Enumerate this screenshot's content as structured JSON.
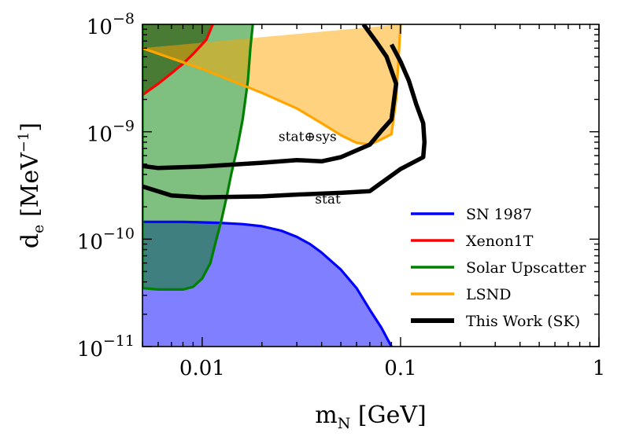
{
  "chart_data": {
    "type": "area",
    "x_scale": "log",
    "y_scale": "log",
    "xlim": [
      0.005,
      1
    ],
    "ylim": [
      1e-11,
      1e-08
    ],
    "xlabel_main": "m",
    "xlabel_sub": "N",
    "xlabel_unit": " [GeV]",
    "ylabel_main": "d",
    "ylabel_sub": "e",
    "ylabel_unit": " [MeV",
    "ylabel_exp": "−1",
    "ylabel_close": "]",
    "x_ticks": [
      {
        "value": 0.01,
        "label": "0.01"
      },
      {
        "value": 0.1,
        "label": "0.1"
      },
      {
        "value": 1,
        "label": "1"
      }
    ],
    "y_ticks": [
      {
        "value": 1e-08,
        "base": "10",
        "exp": "−8"
      },
      {
        "value": 1e-09,
        "base": "10",
        "exp": "−9"
      },
      {
        "value": 1e-10,
        "base": "10",
        "exp": "−10"
      },
      {
        "value": 1e-11,
        "base": "10",
        "exp": "−11"
      }
    ],
    "legend_position": "lower-right",
    "series": [
      {
        "name": "SN 1987",
        "color": "#0000ff",
        "fill": "#7f7fff",
        "fill_opacity": 1,
        "kind": "excluded-below",
        "points": [
          [
            0.005,
            1.45e-10
          ],
          [
            0.008,
            1.45e-10
          ],
          [
            0.012,
            1.42e-10
          ],
          [
            0.016,
            1.38e-10
          ],
          [
            0.02,
            1.32e-10
          ],
          [
            0.025,
            1.2e-10
          ],
          [
            0.03,
            1.05e-10
          ],
          [
            0.035,
            9e-11
          ],
          [
            0.04,
            7.5e-11
          ],
          [
            0.05,
            5.2e-11
          ],
          [
            0.06,
            3.5e-11
          ],
          [
            0.07,
            2.2e-11
          ],
          [
            0.08,
            1.5e-11
          ],
          [
            0.09,
            1e-11
          ]
        ]
      },
      {
        "name": "Xenon1T",
        "color": "#ff0000",
        "fill": "#6e4a3a",
        "fill_opacity": 0.75,
        "kind": "excluded-above",
        "points": [
          [
            0.005,
            2.2e-09
          ],
          [
            0.006,
            2.8e-09
          ],
          [
            0.007,
            3.5e-09
          ],
          [
            0.008,
            4.3e-09
          ],
          [
            0.009,
            5.3e-09
          ],
          [
            0.0105,
            7.2e-09
          ],
          [
            0.0113,
            1e-08
          ]
        ]
      },
      {
        "name": "Solar Upscatter",
        "color": "#008000",
        "fill": "#008000",
        "fill_opacity": 0.5,
        "kind": "region",
        "points": [
          [
            0.005,
            1e-08
          ],
          [
            0.005,
            3.5e-11
          ],
          [
            0.006,
            3.4e-11
          ],
          [
            0.008,
            3.4e-11
          ],
          [
            0.009,
            3.6e-11
          ],
          [
            0.01,
            4.3e-11
          ],
          [
            0.011,
            6e-11
          ],
          [
            0.0118,
            1e-10
          ],
          [
            0.0125,
            1.5e-10
          ],
          [
            0.0133,
            2.5e-10
          ],
          [
            0.014,
            4e-10
          ],
          [
            0.015,
            7e-10
          ],
          [
            0.016,
            1.3e-09
          ],
          [
            0.017,
            3e-09
          ],
          [
            0.0175,
            6e-09
          ],
          [
            0.018,
            1e-08
          ]
        ]
      },
      {
        "name": "LSND",
        "color": "#ffa500",
        "fill": "#ffa500",
        "fill_opacity": 0.5,
        "kind": "region",
        "points": [
          [
            0.005,
            6e-09
          ],
          [
            0.01,
            3.85e-09
          ],
          [
            0.02,
            2.3e-09
          ],
          [
            0.03,
            1.65e-09
          ],
          [
            0.04,
            1.2e-09
          ],
          [
            0.05,
            9.3e-10
          ],
          [
            0.06,
            7.9e-10
          ],
          [
            0.07,
            7.6e-10
          ],
          [
            0.08,
            8.5e-10
          ],
          [
            0.09,
            9.5e-10
          ],
          [
            0.095,
            2e-09
          ],
          [
            0.1,
            1e-08
          ]
        ]
      },
      {
        "name": "This Work (SK)",
        "color": "#000000",
        "kind": "curves",
        "curves": [
          {
            "label": "stat⊕sys",
            "points": [
              [
                0.005,
                4.8e-10
              ],
              [
                0.006,
                4.6e-10
              ],
              [
                0.01,
                4.75e-10
              ],
              [
                0.02,
                5.15e-10
              ],
              [
                0.03,
                5.45e-10
              ],
              [
                0.04,
                5.3e-10
              ],
              [
                0.05,
                5.8e-10
              ],
              [
                0.07,
                7.6e-10
              ],
              [
                0.08,
                1.02e-09
              ],
              [
                0.09,
                1.3e-09
              ],
              [
                0.095,
                2.8e-09
              ],
              [
                0.085,
                5e-09
              ],
              [
                0.075,
                7e-09
              ],
              [
                0.065,
                1e-08
              ]
            ]
          },
          {
            "label": "stat",
            "points": [
              [
                0.005,
                3.1e-10
              ],
              [
                0.007,
                2.55e-10
              ],
              [
                0.01,
                2.45e-10
              ],
              [
                0.02,
                2.5e-10
              ],
              [
                0.03,
                2.6e-10
              ],
              [
                0.05,
                2.7e-10
              ],
              [
                0.07,
                2.8e-10
              ],
              [
                0.1,
                4.5e-10
              ],
              [
                0.13,
                5.8e-10
              ],
              [
                0.132,
                8e-10
              ],
              [
                0.13,
                1.2e-09
              ],
              [
                0.12,
                1.8e-09
              ],
              [
                0.11,
                3e-09
              ],
              [
                0.1,
                4.5e-09
              ],
              [
                0.09,
                6.5e-09
              ]
            ]
          }
        ]
      }
    ],
    "annotations": [
      {
        "text": "stat⊕sys",
        "x": 0.034,
        "y": 8.2e-10
      },
      {
        "text": "stat",
        "x": 0.043,
        "y": 2.15e-10
      }
    ]
  }
}
